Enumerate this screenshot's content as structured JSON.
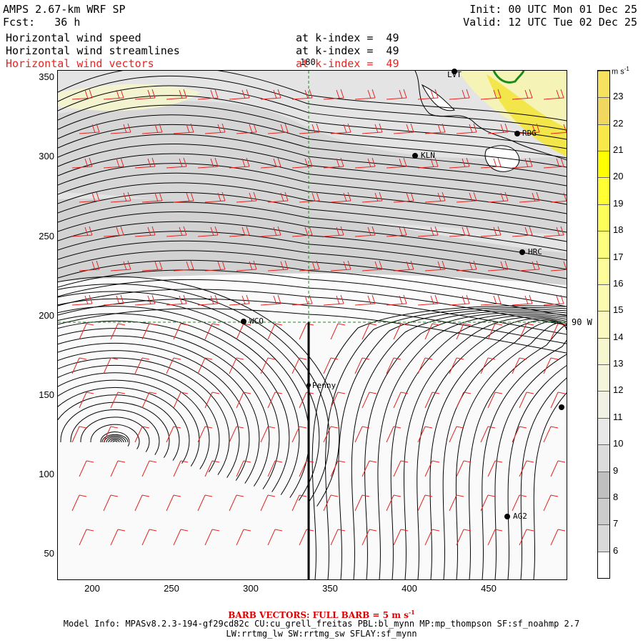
{
  "header": {
    "model_title": "AMPS 2.67-km WRF SP",
    "init_label": "Init: 00 UTC Mon 01 Dec 25",
    "fcst_label": "Fcst:   36 h",
    "valid_label": "Valid: 12 UTC Tue 02 Dec 25"
  },
  "fields": [
    {
      "name": "Horizontal wind speed",
      "level": "at k-index =  49"
    },
    {
      "name": "Horizontal wind streamlines",
      "level": "at k-index =  49"
    },
    {
      "name": "Horizontal wind vectors",
      "level": "at k-index =  49"
    }
  ],
  "axes": {
    "y_ticks": [
      "350",
      "300",
      "250",
      "200",
      "150",
      "100",
      "50"
    ],
    "x_ticks": [
      "200",
      "250",
      "300",
      "350",
      "400",
      "450"
    ]
  },
  "grid_labels": {
    "meridian": "180",
    "parallel": "90 W"
  },
  "stations": [
    {
      "name": "LVT"
    },
    {
      "name": "RDG"
    },
    {
      "name": "KLN"
    },
    {
      "name": "HRC"
    },
    {
      "name": "WCO"
    },
    {
      "name": "Penny"
    },
    {
      "name": "AG2"
    },
    {
      "name": ""
    }
  ],
  "colorbar": {
    "unit": "m s",
    "unit_exp": "-1",
    "levels": [
      "6",
      "7",
      "8",
      "9",
      "10",
      "11",
      "12",
      "13",
      "14",
      "15",
      "16",
      "17",
      "18",
      "19",
      "20",
      "21",
      "22",
      "23"
    ],
    "colors": [
      "#ffffff",
      "#d9d9d9",
      "#cccccc",
      "#bfbfbf",
      "#dcdcdc",
      "#e8e8e8",
      "#f1f1e4",
      "#f5f5dc",
      "#f7f7cf",
      "#fafac0",
      "#fbfbb0",
      "#fcfc9a",
      "#fdfd7e",
      "#fefe5a",
      "#ffff33",
      "#ffff00",
      "#f8e84a",
      "#f0d860",
      "#f6e25e"
    ]
  },
  "footer": {
    "barb_note": "BARB VECTORS:  FULL BARB = 5 m s",
    "barb_exp": "-1",
    "model_info_1": "Model Info: MPASv8.2.3-194-gf29cd82c CU:cu_grell_freitas PBL:bl_mynn MP:mp_thompson SF:sf_noahmp 2.7",
    "model_info_2": "LW:rrtmg_lw SW:rrtmg_sw SFLAY:sf_mynn"
  }
}
